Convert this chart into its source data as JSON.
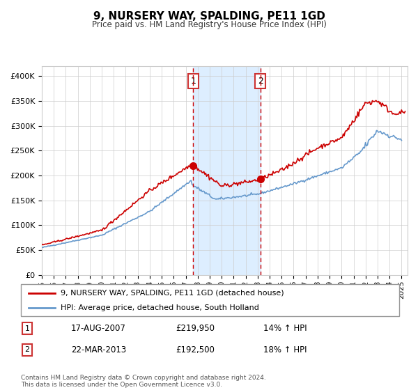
{
  "title": "9, NURSERY WAY, SPALDING, PE11 1GD",
  "subtitle": "Price paid vs. HM Land Registry's House Price Index (HPI)",
  "legend_line1": "9, NURSERY WAY, SPALDING, PE11 1GD (detached house)",
  "legend_line2": "HPI: Average price, detached house, South Holland",
  "transaction1_label": "1",
  "transaction1_date": "17-AUG-2007",
  "transaction1_price": "£219,950",
  "transaction1_hpi": "14% ↑ HPI",
  "transaction2_label": "2",
  "transaction2_date": "22-MAR-2013",
  "transaction2_price": "£192,500",
  "transaction2_hpi": "18% ↑ HPI",
  "footer": "Contains HM Land Registry data © Crown copyright and database right 2024.\nThis data is licensed under the Open Government Licence v3.0.",
  "property_color": "#cc0000",
  "hpi_color": "#6699cc",
  "shade_color": "#ddeeff",
  "marker1_x": 2007.63,
  "marker1_y": 219950,
  "marker2_x": 2013.22,
  "marker2_y": 192500,
  "vline1_x": 2007.63,
  "vline2_x": 2013.22,
  "ylim": [
    0,
    420000
  ],
  "xlim_start": 1995.0,
  "xlim_end": 2025.5
}
